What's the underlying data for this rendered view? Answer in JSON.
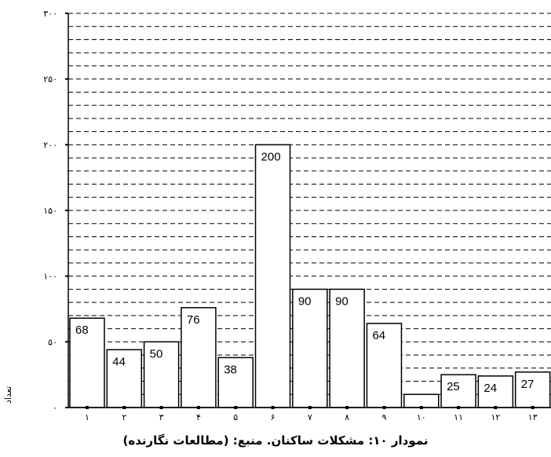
{
  "caption": "نمودار ۱۰: مشکلات ساکنان. منبع: (مطالعات نگارنده)",
  "chart_data": {
    "type": "bar",
    "ylabel": "تعداد",
    "xlabel": "",
    "ylim": [
      0,
      300
    ],
    "y_ticks": [
      0,
      50,
      100,
      150,
      200,
      250,
      300
    ],
    "y_tick_labels": [
      "۰",
      "۵۰",
      "۱۰۰",
      "۱۵۰",
      "۲۰۰",
      "۲۵۰",
      "۳۰۰"
    ],
    "categories": [
      "۱",
      "۲",
      "۳",
      "۴",
      "۵",
      "۶",
      "۷",
      "۸",
      "۹",
      "۱۰",
      "۱۱",
      "۱۲",
      "۱۳"
    ],
    "values": [
      68,
      44,
      50,
      76,
      38,
      200,
      90,
      90,
      64,
      10,
      25,
      24,
      27
    ],
    "data_labels": [
      "68",
      "44",
      "50",
      "76",
      "38",
      "200",
      "90",
      "90",
      "64",
      "",
      "25",
      "24",
      "27"
    ],
    "grid": "horizontal dashed",
    "bar_color": "#ffffff",
    "bar_edge_color": "#000000"
  }
}
